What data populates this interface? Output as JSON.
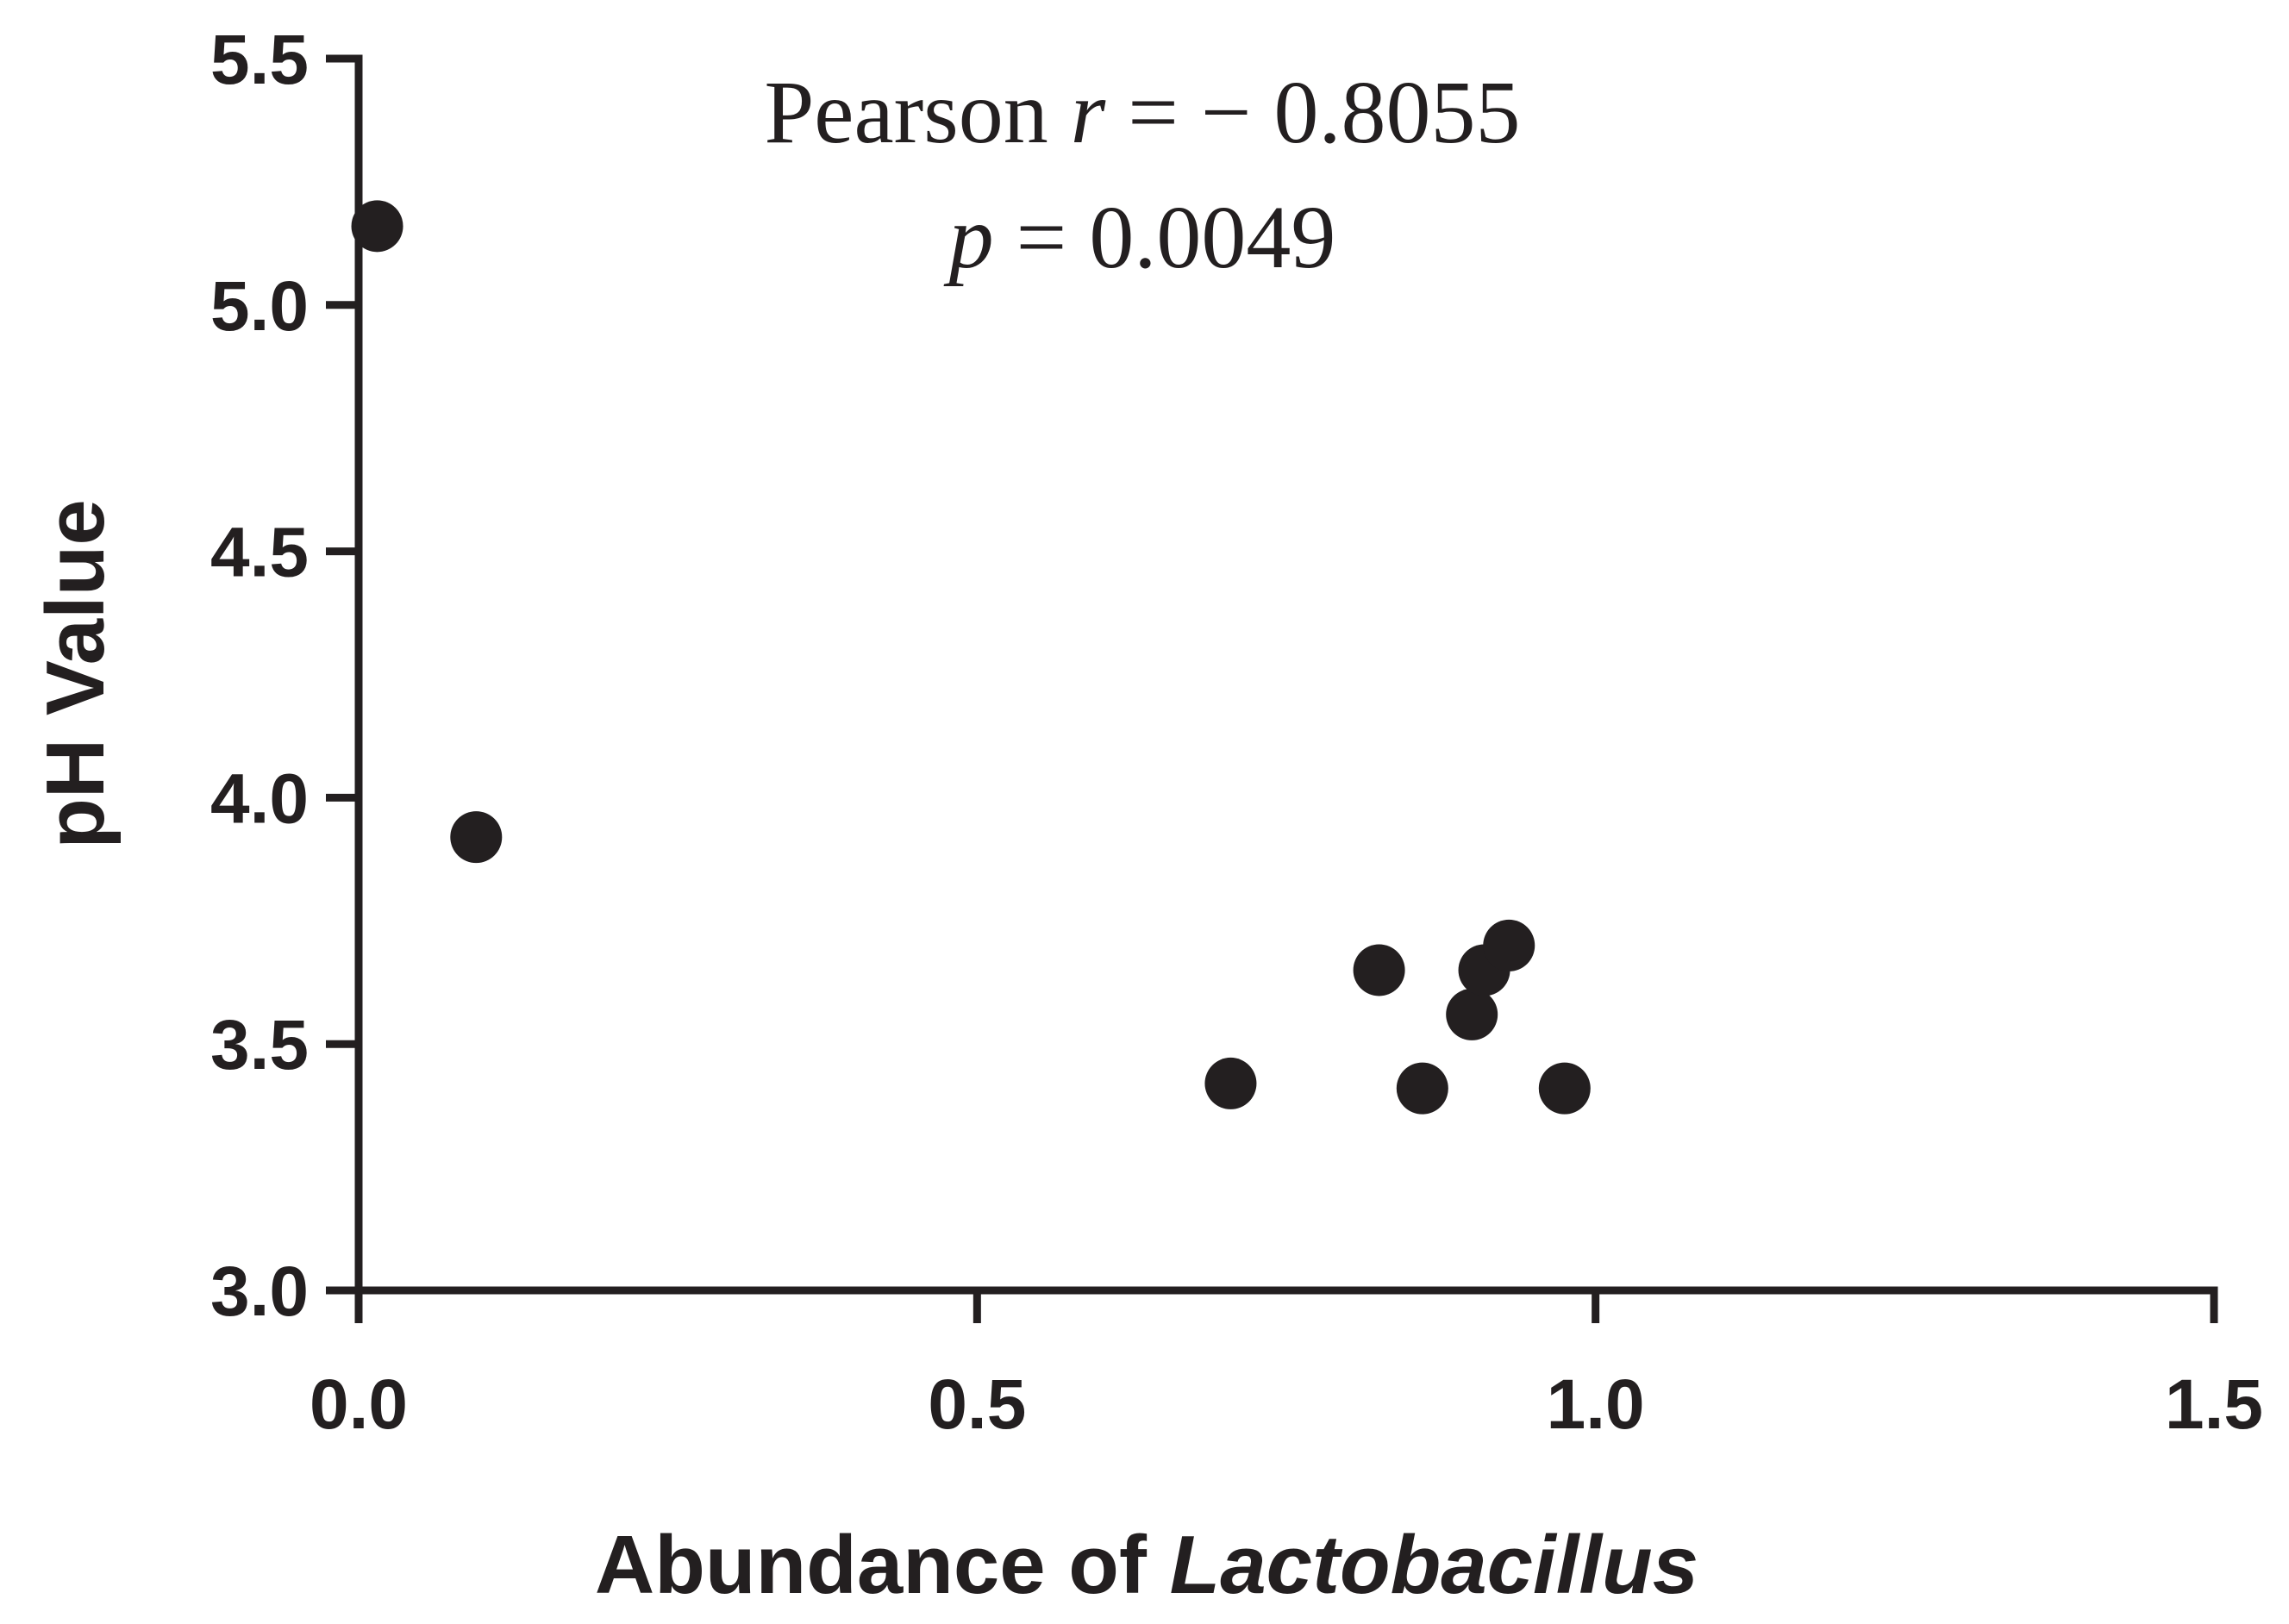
{
  "chart_data": {
    "type": "scatter",
    "xlabel_prefix": "Abundance of",
    "xlabel_italic": "Lactobacillus",
    "ylabel": "pH Value",
    "xlim": [
      0.0,
      1.5
    ],
    "ylim": [
      3.0,
      5.5
    ],
    "xticks": [
      "0.0",
      "0.5",
      "1.0",
      "1.5"
    ],
    "yticks": [
      "3.0",
      "3.5",
      "4.0",
      "4.5",
      "5.0",
      "5.5"
    ],
    "grid": false,
    "annotation": {
      "pearson_label": "Pearson",
      "r_symbol": "r",
      "r_value": "= − 0.8055",
      "p_symbol": "p",
      "p_value": "= 0.0049"
    },
    "points": [
      {
        "x": 0.015,
        "y": 5.16
      },
      {
        "x": 0.095,
        "y": 3.92
      },
      {
        "x": 0.705,
        "y": 3.42
      },
      {
        "x": 0.825,
        "y": 3.65
      },
      {
        "x": 0.86,
        "y": 3.41
      },
      {
        "x": 0.9,
        "y": 3.56
      },
      {
        "x": 0.91,
        "y": 3.65
      },
      {
        "x": 0.93,
        "y": 3.7
      },
      {
        "x": 0.975,
        "y": 3.41
      }
    ],
    "point_color": "#231f20"
  }
}
